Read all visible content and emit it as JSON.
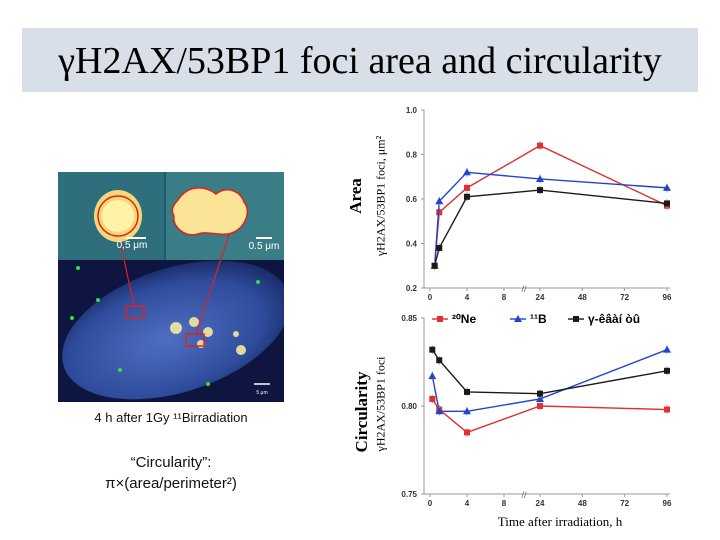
{
  "title": "γH2AX/53BP1 foci area and circularity",
  "micrograph": {
    "scalebar_left": "0,5 μm",
    "scalebar_right": "0.5 μm",
    "scalebar_main": "5 μm",
    "caption": "4 h after 1Gy ¹¹Birradiation",
    "formula_line1": "“Circularity”:",
    "formula_line2": "π×(area/perimeter²)"
  },
  "labels": {
    "area_word": "Area",
    "area_unit": "γH2AX/53BP1 foci, μm²",
    "circ_word": "Circularity",
    "circ_unit": "γH2AX/53BP1 foci",
    "x_title": "Time after irradiation, h",
    "break_mark": "//"
  },
  "colors": {
    "ne": "#e03030",
    "b": "#2244cc",
    "gamma": "#1a1a1a"
  },
  "chart_data": [
    {
      "type": "line",
      "title": "Area",
      "ylabel": "γH2AX/53BP1 foci, μm²",
      "ylim": [
        0.2,
        1.0
      ],
      "yticks": [
        "0.2",
        "0.4",
        "0.6",
        "0.8",
        "1.0"
      ],
      "x": [
        0.5,
        1,
        4,
        24,
        96
      ],
      "xticks": [
        "0",
        "4",
        "8",
        "24",
        "48",
        "72",
        "96"
      ],
      "axis_break": "between 8 and 24 h",
      "series": [
        {
          "name": "Ne",
          "color": "#e03030",
          "values": [
            0.3,
            0.54,
            0.65,
            0.84,
            0.57
          ]
        },
        {
          "name": "B",
          "color": "#2244cc",
          "values": [
            0.3,
            0.59,
            0.72,
            0.69,
            0.65
          ]
        },
        {
          "name": "γ-êâàí òû",
          "color": "#1a1a1a",
          "values": [
            0.3,
            0.38,
            0.61,
            0.64,
            0.58
          ]
        }
      ],
      "legend": {
        "placement": "bottom",
        "entries": [
          "²⁰Ne",
          "¹¹B",
          "γ-êâàí òû"
        ]
      }
    },
    {
      "type": "line",
      "title": "Circularity",
      "ylabel": "γH2AX/53BP1 foci",
      "ylim": [
        0.75,
        0.85
      ],
      "yticks": [
        "0.75",
        "0.80",
        "0.85"
      ],
      "x": [
        0.25,
        1,
        4,
        24,
        96
      ],
      "xticks": [
        "0",
        "4",
        "8",
        "24",
        "48",
        "72",
        "96"
      ],
      "axis_break": "between 8 and 24 h",
      "series": [
        {
          "name": "Ne",
          "color": "#e03030",
          "values": [
            0.804,
            0.798,
            0.785,
            0.8,
            0.798
          ]
        },
        {
          "name": "B",
          "color": "#2244cc",
          "values": [
            0.817,
            0.797,
            0.797,
            0.804,
            0.832
          ]
        },
        {
          "name": "γ-êâàí òû",
          "color": "#1a1a1a",
          "values": [
            0.832,
            0.826,
            0.808,
            0.807,
            0.82
          ]
        }
      ]
    }
  ]
}
